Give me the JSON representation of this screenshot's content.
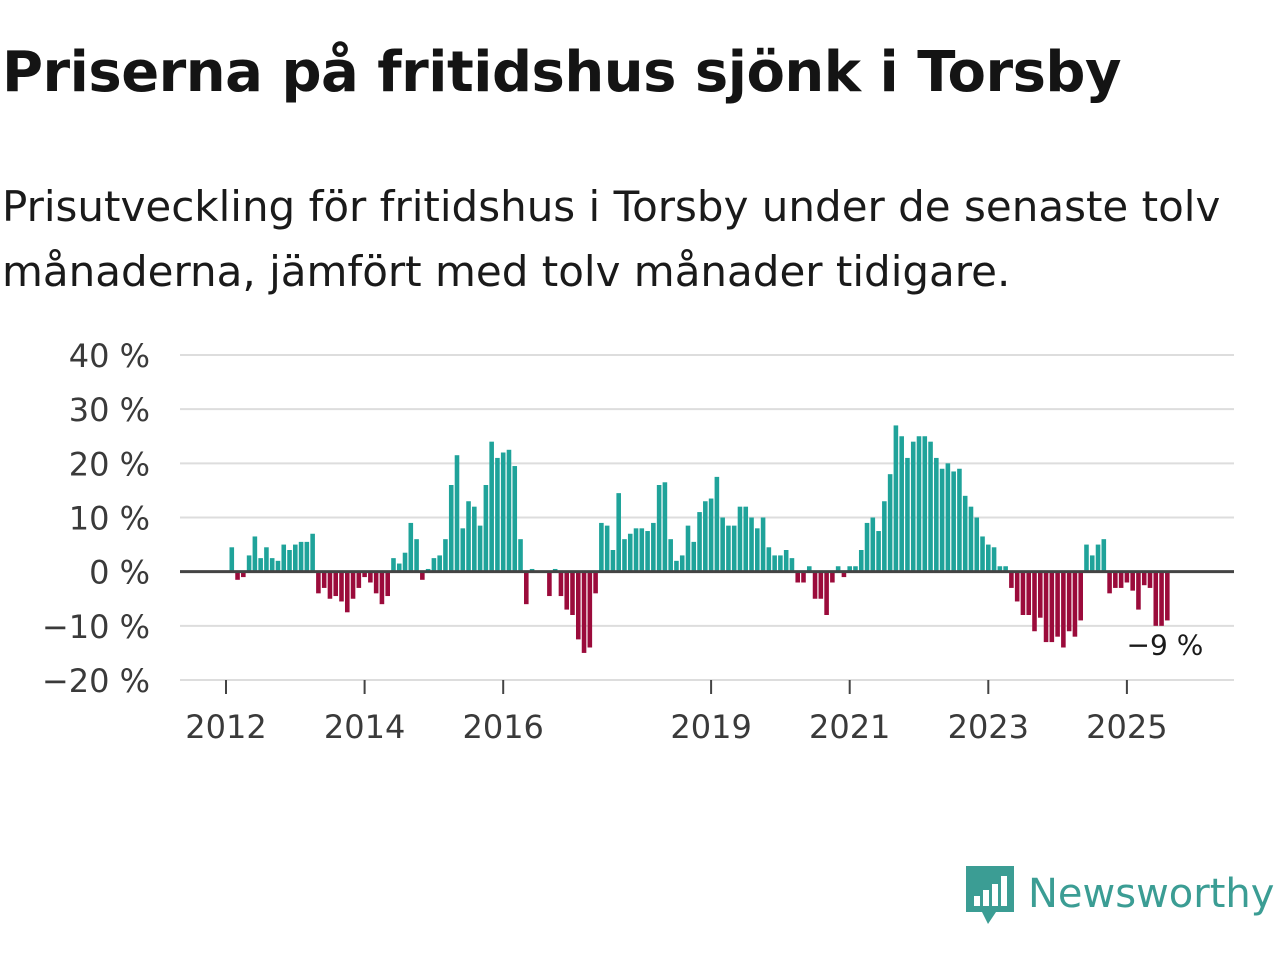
{
  "header": {
    "title": "Priserna på fritidshus sjönk i Torsby",
    "subtitle": "Prisutveckling för fritidshus i Torsby under de senaste tolv månaderna, jämfört med tolv månader tidigare."
  },
  "brand": {
    "name": "Newsworthy",
    "icon": "newsworthy-logo-icon",
    "color": "#3b9d94"
  },
  "colors": {
    "positive": "#1fa39a",
    "negative": "#9b0b3b",
    "zero_line": "#444444",
    "grid": "#dddddd"
  },
  "chart_data": {
    "type": "bar",
    "title": "Priserna på fritidshus sjönk i Torsby",
    "xlabel": "",
    "ylabel": "",
    "unit": "%",
    "ylim": [
      -20,
      40
    ],
    "y_ticks": [
      -20,
      -10,
      0,
      10,
      20,
      30,
      40
    ],
    "y_tick_labels": [
      "−20 %",
      "−10 %",
      "0 %",
      "10 %",
      "20 %",
      "30 %",
      "40 %"
    ],
    "x_ticks": [
      2012,
      2014,
      2016,
      2019,
      2021,
      2023,
      2025
    ],
    "x_tick_labels": [
      "2012",
      "2014",
      "2016",
      "2019",
      "2021",
      "2023",
      "2025"
    ],
    "start": {
      "year": 2011,
      "month": 1
    },
    "values": [
      null,
      null,
      null,
      null,
      null,
      null,
      null,
      null,
      null,
      null,
      null,
      null,
      null,
      4.5,
      -1.5,
      -1,
      3,
      6.5,
      2.5,
      4.5,
      2.5,
      2,
      5,
      4,
      5,
      5.5,
      5.5,
      7,
      -4,
      -3,
      -5,
      -4.5,
      -5.5,
      -7.5,
      -5,
      -3,
      -1,
      -2,
      -4,
      -6,
      -4.5,
      2.5,
      1.5,
      3.5,
      9,
      6,
      -1.5,
      0.5,
      2.5,
      3,
      6,
      16,
      21.5,
      8,
      13,
      12,
      8.5,
      16,
      24,
      21,
      22,
      22.5,
      19.5,
      6,
      -6,
      0.5,
      null,
      null,
      -4.5,
      0.5,
      -4.5,
      -7,
      -8,
      -12.5,
      -15,
      -14,
      -4,
      9,
      8.5,
      4,
      14.5,
      6,
      7,
      8,
      8,
      7.5,
      9,
      16,
      16.5,
      6,
      2,
      3,
      8.5,
      5.5,
      11,
      13,
      13.5,
      17.5,
      10,
      8.5,
      8.5,
      12,
      12,
      10,
      8,
      10,
      4.5,
      3,
      3,
      4,
      2.5,
      -2,
      -2,
      1,
      -5,
      -5,
      -8,
      -2,
      1,
      -1,
      1,
      1,
      4,
      9,
      10,
      7.5,
      13,
      18,
      27,
      25,
      21,
      24,
      25,
      25,
      24,
      21,
      19,
      20,
      18.5,
      19,
      14,
      12,
      10,
      6.5,
      5,
      4.5,
      1,
      1,
      -3,
      -5.5,
      -8,
      -8,
      -11,
      -8.5,
      -13,
      -13,
      -12,
      -14,
      -11,
      -12,
      -9,
      5,
      3,
      5,
      6,
      -4,
      -3,
      -3,
      -2,
      -3.5,
      -7,
      -2.5,
      -3,
      -10,
      -10,
      -9
    ],
    "last_value_label": "−9 %"
  }
}
